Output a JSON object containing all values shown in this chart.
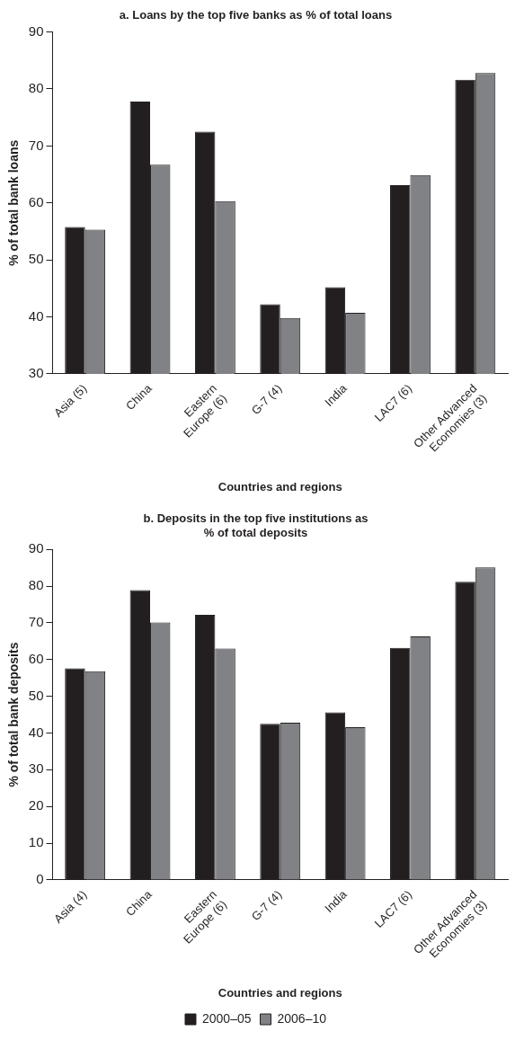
{
  "chart_data": [
    {
      "type": "bar",
      "title": "a. Loans by the top five banks as % of total loans",
      "xlabel": "Countries and regions",
      "ylabel": "% of total bank loans",
      "categories": [
        "Asia (5)",
        "China",
        "Eastern\nEurope (6)",
        "G-7 (4)",
        "India",
        "LAC7 (6)",
        "Other Advanced\nEconomies (3)"
      ],
      "series": [
        {
          "color": "#231f20",
          "values": [
            55.8,
            77.8,
            72.5,
            42.2,
            45.2,
            63.1,
            81.6
          ]
        },
        {
          "color": "#808285",
          "values": [
            55.3,
            66.7,
            60.3,
            39.8,
            40.7,
            64.9,
            82.8
          ]
        }
      ],
      "ylim": [
        30,
        90
      ],
      "yticks": [
        30,
        40,
        50,
        60,
        70,
        80,
        90
      ],
      "grid": false,
      "legend": false
    },
    {
      "type": "bar",
      "title": "b. Deposits in the top five institutions as\n% of total deposits",
      "xlabel": "Countries and regions",
      "ylabel": "% of total bank deposits",
      "categories": [
        "Asia (4)",
        "China",
        "Eastern\nEurope (6)",
        "G-7 (4)",
        "India",
        "LAC7 (6)",
        "Other Advanced\nEconomies (3)"
      ],
      "series": [
        {
          "name": "2000–05",
          "color": "#231f20",
          "values": [
            57.6,
            78.9,
            72.2,
            42.5,
            45.6,
            63.2,
            81.2
          ]
        },
        {
          "name": "2006–10",
          "color": "#808285",
          "values": [
            56.8,
            70.1,
            63.0,
            42.8,
            41.6,
            66.3,
            85.1
          ]
        }
      ],
      "ylim": [
        0,
        90
      ],
      "yticks": [
        0,
        10,
        20,
        30,
        40,
        50,
        60,
        70,
        80,
        90
      ],
      "grid": false,
      "legend": "bottom"
    }
  ]
}
